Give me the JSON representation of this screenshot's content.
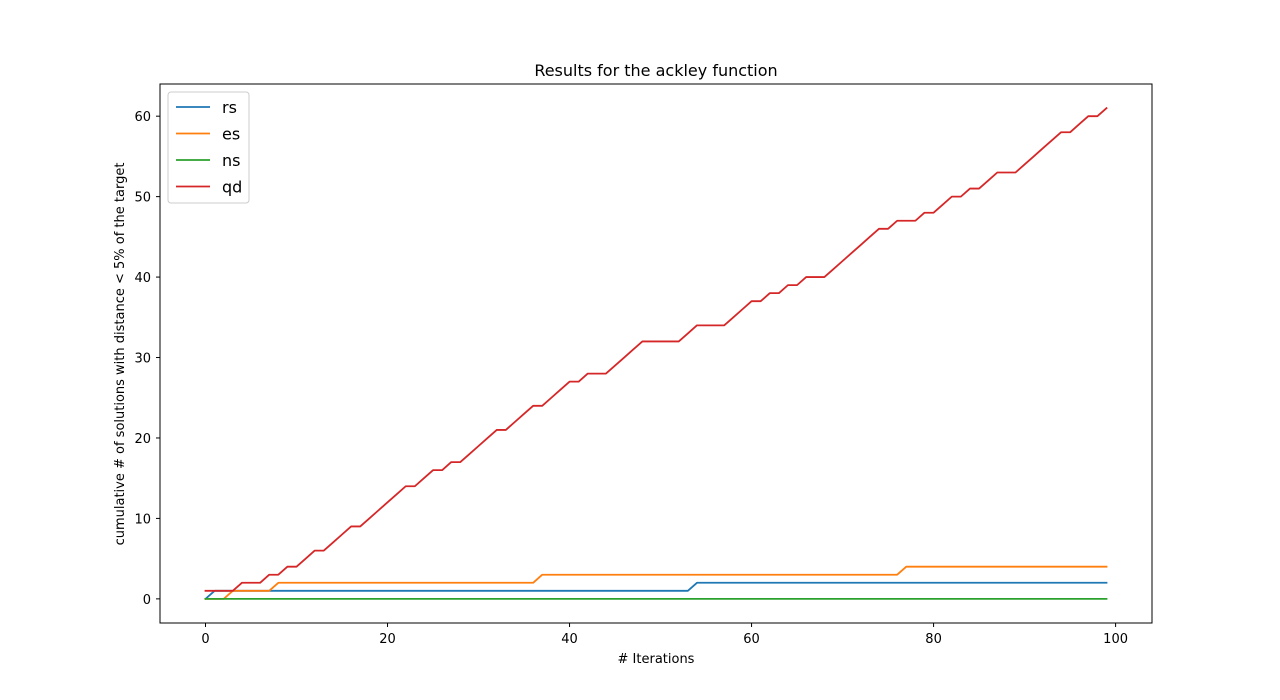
{
  "chart_data": {
    "type": "line",
    "title": "Results for the ackley function",
    "xlabel": "# Iterations",
    "ylabel": "cumulative # of solutions with distance < 5% of the target",
    "xlim": [
      -5,
      104
    ],
    "ylim": [
      -3,
      64
    ],
    "xticks": [
      0,
      20,
      40,
      60,
      80,
      100
    ],
    "yticks": [
      0,
      10,
      20,
      30,
      40,
      50,
      60
    ],
    "grid": false,
    "legend_position": "top-left",
    "x": [
      0,
      1,
      2,
      3,
      4,
      5,
      6,
      7,
      8,
      9,
      10,
      11,
      12,
      13,
      14,
      15,
      16,
      17,
      18,
      19,
      20,
      21,
      22,
      23,
      24,
      25,
      26,
      27,
      28,
      29,
      30,
      31,
      32,
      33,
      34,
      35,
      36,
      37,
      38,
      39,
      40,
      41,
      42,
      43,
      44,
      45,
      46,
      47,
      48,
      49,
      50,
      51,
      52,
      53,
      54,
      55,
      56,
      57,
      58,
      59,
      60,
      61,
      62,
      63,
      64,
      65,
      66,
      67,
      68,
      69,
      70,
      71,
      72,
      73,
      74,
      75,
      76,
      77,
      78,
      79,
      80,
      81,
      82,
      83,
      84,
      85,
      86,
      87,
      88,
      89,
      90,
      91,
      92,
      93,
      94,
      95,
      96,
      97,
      98,
      99
    ],
    "series": [
      {
        "name": "rs",
        "color": "#1f77b4",
        "values": [
          0,
          1,
          1,
          1,
          1,
          1,
          1,
          1,
          1,
          1,
          1,
          1,
          1,
          1,
          1,
          1,
          1,
          1,
          1,
          1,
          1,
          1,
          1,
          1,
          1,
          1,
          1,
          1,
          1,
          1,
          1,
          1,
          1,
          1,
          1,
          1,
          1,
          1,
          1,
          1,
          1,
          1,
          1,
          1,
          1,
          1,
          1,
          1,
          1,
          1,
          1,
          1,
          1,
          1,
          2,
          2,
          2,
          2,
          2,
          2,
          2,
          2,
          2,
          2,
          2,
          2,
          2,
          2,
          2,
          2,
          2,
          2,
          2,
          2,
          2,
          2,
          2,
          2,
          2,
          2,
          2,
          2,
          2,
          2,
          2,
          2,
          2,
          2,
          2,
          2,
          2,
          2,
          2,
          2,
          2,
          2,
          2,
          2,
          2,
          2
        ]
      },
      {
        "name": "es",
        "color": "#ff7f0e",
        "values": [
          0,
          0,
          0,
          1,
          1,
          1,
          1,
          1,
          2,
          2,
          2,
          2,
          2,
          2,
          2,
          2,
          2,
          2,
          2,
          2,
          2,
          2,
          2,
          2,
          2,
          2,
          2,
          2,
          2,
          2,
          2,
          2,
          2,
          2,
          2,
          2,
          2,
          3,
          3,
          3,
          3,
          3,
          3,
          3,
          3,
          3,
          3,
          3,
          3,
          3,
          3,
          3,
          3,
          3,
          3,
          3,
          3,
          3,
          3,
          3,
          3,
          3,
          3,
          3,
          3,
          3,
          3,
          3,
          3,
          3,
          3,
          3,
          3,
          3,
          3,
          3,
          3,
          4,
          4,
          4,
          4,
          4,
          4,
          4,
          4,
          4,
          4,
          4,
          4,
          4,
          4,
          4,
          4,
          4,
          4,
          4,
          4,
          4,
          4,
          4
        ]
      },
      {
        "name": "ns",
        "color": "#2ca02c",
        "values": [
          0,
          0,
          0,
          0,
          0,
          0,
          0,
          0,
          0,
          0,
          0,
          0,
          0,
          0,
          0,
          0,
          0,
          0,
          0,
          0,
          0,
          0,
          0,
          0,
          0,
          0,
          0,
          0,
          0,
          0,
          0,
          0,
          0,
          0,
          0,
          0,
          0,
          0,
          0,
          0,
          0,
          0,
          0,
          0,
          0,
          0,
          0,
          0,
          0,
          0,
          0,
          0,
          0,
          0,
          0,
          0,
          0,
          0,
          0,
          0,
          0,
          0,
          0,
          0,
          0,
          0,
          0,
          0,
          0,
          0,
          0,
          0,
          0,
          0,
          0,
          0,
          0,
          0,
          0,
          0,
          0,
          0,
          0,
          0,
          0,
          0,
          0,
          0,
          0,
          0,
          0,
          0,
          0,
          0,
          0,
          0,
          0,
          0,
          0,
          0
        ]
      },
      {
        "name": "qd",
        "color": "#d62728",
        "values": [
          1,
          1,
          1,
          1,
          2,
          2,
          2,
          3,
          3,
          4,
          4,
          5,
          6,
          6,
          7,
          8,
          9,
          9,
          10,
          11,
          12,
          13,
          14,
          14,
          15,
          16,
          16,
          17,
          17,
          18,
          19,
          20,
          21,
          21,
          22,
          23,
          24,
          24,
          25,
          26,
          27,
          27,
          28,
          28,
          28,
          29,
          30,
          31,
          32,
          32,
          32,
          32,
          32,
          33,
          34,
          34,
          34,
          34,
          35,
          36,
          37,
          37,
          38,
          38,
          39,
          39,
          40,
          40,
          40,
          41,
          42,
          43,
          44,
          45,
          46,
          46,
          47,
          47,
          47,
          48,
          48,
          49,
          50,
          50,
          51,
          51,
          52,
          53,
          53,
          53,
          54,
          55,
          56,
          57,
          58,
          58,
          59,
          60,
          60,
          61
        ]
      }
    ]
  }
}
